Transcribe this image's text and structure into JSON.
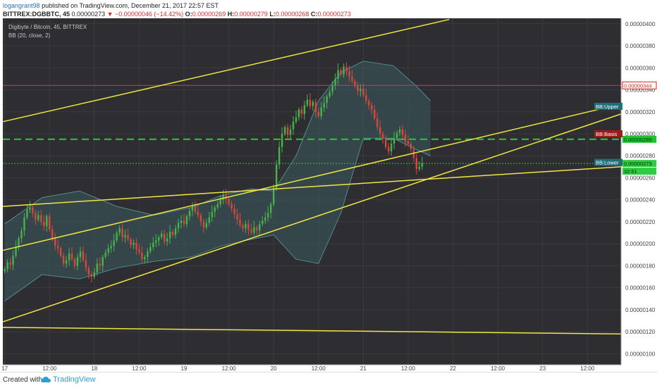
{
  "header": {
    "username": "logangrant98",
    "published_text": "published on TradingView.com, December 21, 2017 22:57 EST",
    "symbol": "BITTREX:DGBBTC, 45",
    "last_price": "0.00000273",
    "change": "−0.00000046 (−14.42%)",
    "open_label": "O:",
    "open": "0.00000269",
    "high_label": "H:",
    "high": "0.00000279",
    "low_label": "L:",
    "low": "0.00000268",
    "close_label": "C:",
    "close": "0.00000273"
  },
  "chart_overlay": {
    "instrument": "Digibyte / Bitcoin, 45, BITTREX",
    "indicator": "BB (20, close, 2)"
  },
  "footer": {
    "created_with": "Created with",
    "brand": "TradingView"
  },
  "chart_data": {
    "type": "candlestick",
    "ylim": [
      9e-07,
      4.05e-06
    ],
    "y_ticks": [
      "0.00000100",
      "0.00000120",
      "0.00000140",
      "0.00000160",
      "0.00000180",
      "0.00000200",
      "0.00000220",
      "0.00000240",
      "0.00000260",
      "0.00000280",
      "0.00000300",
      "0.00000320",
      "0.00000340",
      "0.00000360",
      "0.00000380",
      "0.00000400"
    ],
    "y_tick_values": [
      100,
      120,
      140,
      160,
      180,
      200,
      220,
      240,
      260,
      280,
      300,
      320,
      340,
      360,
      380,
      400
    ],
    "x_ticks": [
      {
        "label": "17",
        "t": 0
      },
      {
        "label": "12:00",
        "t": 12
      },
      {
        "label": "18",
        "t": 24
      },
      {
        "label": "12:00",
        "t": 36
      },
      {
        "label": "19",
        "t": 48
      },
      {
        "label": "12:00",
        "t": 60
      },
      {
        "label": "20",
        "t": 72
      },
      {
        "label": "12:00",
        "t": 84
      },
      {
        "label": "21",
        "t": 96
      },
      {
        "label": "12:00",
        "t": 108
      },
      {
        "label": "22",
        "t": 120
      },
      {
        "label": "12:00",
        "t": 132
      },
      {
        "label": "23",
        "t": 144
      },
      {
        "label": "12:00",
        "t": 156
      }
    ],
    "x_range_hours": [
      -0.5,
      165
    ],
    "unit_note": "prices in units of 1e-8 BTC",
    "candles_hours_start": 0,
    "candle_step_hours": 0.75,
    "closes": [
      177,
      183,
      181,
      189,
      197,
      205,
      212,
      224,
      231,
      233,
      228,
      222,
      226,
      220,
      216,
      225,
      213,
      205,
      198,
      196,
      189,
      182,
      185,
      191,
      186,
      180,
      188,
      193,
      185,
      178,
      172,
      170,
      174,
      182,
      180,
      188,
      192,
      196,
      198,
      203,
      210,
      214,
      206,
      208,
      204,
      199,
      201,
      195,
      192,
      186,
      188,
      193,
      197,
      201,
      203,
      206,
      209,
      202,
      205,
      211,
      208,
      214,
      219,
      221,
      218,
      225,
      230,
      234,
      229,
      226,
      220,
      215,
      219,
      224,
      229,
      233,
      236,
      240,
      244,
      241,
      236,
      232,
      227,
      222,
      217,
      214,
      218,
      213,
      210,
      215,
      212,
      218,
      221,
      224,
      228,
      236,
      251,
      272,
      288,
      300,
      306,
      299,
      304,
      311,
      315,
      322,
      318,
      326,
      331,
      325,
      329,
      320,
      316,
      324,
      328,
      334,
      338,
      344,
      350,
      358,
      354,
      361,
      357,
      352,
      348,
      344,
      339,
      341,
      335,
      330,
      326,
      322,
      314,
      306,
      300,
      296,
      288,
      284,
      291,
      296,
      301,
      304,
      299,
      293,
      291,
      286,
      278,
      268,
      270,
      273
    ],
    "upper_band": [
      {
        "t": 0,
        "v": 218
      },
      {
        "t": 10,
        "v": 242
      },
      {
        "t": 20,
        "v": 248
      },
      {
        "t": 30,
        "v": 234
      },
      {
        "t": 40,
        "v": 226
      },
      {
        "t": 50,
        "v": 233
      },
      {
        "t": 58,
        "v": 244
      },
      {
        "t": 66,
        "v": 250
      },
      {
        "t": 72,
        "v": 248
      },
      {
        "t": 78,
        "v": 280
      },
      {
        "t": 84,
        "v": 330
      },
      {
        "t": 90,
        "v": 356
      },
      {
        "t": 96,
        "v": 366
      },
      {
        "t": 104,
        "v": 362
      },
      {
        "t": 110,
        "v": 344
      },
      {
        "t": 114,
        "v": 330
      }
    ],
    "lower_band": [
      {
        "t": 0,
        "v": 148
      },
      {
        "t": 10,
        "v": 172
      },
      {
        "t": 20,
        "v": 168
      },
      {
        "t": 30,
        "v": 178
      },
      {
        "t": 40,
        "v": 184
      },
      {
        "t": 50,
        "v": 188
      },
      {
        "t": 58,
        "v": 198
      },
      {
        "t": 66,
        "v": 204
      },
      {
        "t": 72,
        "v": 208
      },
      {
        "t": 78,
        "v": 186
      },
      {
        "t": 84,
        "v": 182
      },
      {
        "t": 90,
        "v": 228
      },
      {
        "t": 96,
        "v": 296
      },
      {
        "t": 104,
        "v": 296
      },
      {
        "t": 110,
        "v": 286
      },
      {
        "t": 114,
        "v": 280
      }
    ],
    "basis": [
      {
        "t": 0,
        "v": 183
      },
      {
        "t": 10,
        "v": 207
      },
      {
        "t": 20,
        "v": 208
      },
      {
        "t": 30,
        "v": 206
      },
      {
        "t": 40,
        "v": 205
      },
      {
        "t": 50,
        "v": 210
      },
      {
        "t": 58,
        "v": 221
      },
      {
        "t": 66,
        "v": 227
      },
      {
        "t": 72,
        "v": 228
      },
      {
        "t": 78,
        "v": 233
      },
      {
        "t": 84,
        "v": 256
      },
      {
        "t": 90,
        "v": 292
      },
      {
        "t": 96,
        "v": 331
      },
      {
        "t": 104,
        "v": 329
      },
      {
        "t": 110,
        "v": 315
      },
      {
        "t": 114,
        "v": 305
      }
    ],
    "trend_lines": [
      {
        "t1": -0.5,
        "v1": 311,
        "t2": 119,
        "v2": 404
      },
      {
        "t1": -0.5,
        "v1": 194,
        "t2": 165,
        "v2": 327
      },
      {
        "t1": -0.5,
        "v1": 129,
        "t2": 165,
        "v2": 318
      },
      {
        "t1": -0.5,
        "v1": 234,
        "t2": 165,
        "v2": 270
      },
      {
        "t1": -0.5,
        "v1": 124,
        "t2": 165,
        "v2": 118
      }
    ],
    "horizontal_lines": [
      {
        "v": 344,
        "color": "#d83a3a",
        "style": "solid"
      },
      {
        "v": 295,
        "color": "#27c93f",
        "style": "dashed"
      },
      {
        "v": 273,
        "color": "#3fbf3f",
        "style": "dotted"
      }
    ],
    "right_labels": [
      {
        "text": "BB:Upper",
        "v": 325,
        "bg": "#1f6f78",
        "color": "#ffffff",
        "side": "left"
      },
      {
        "text": "0.00000344",
        "v": 344,
        "bg": "#ffffff",
        "color": "#d02020",
        "side": "right",
        "border": "#d02020"
      },
      {
        "text": "BB:Basis",
        "v": 300,
        "bg": "#9c1c1c",
        "color": "#ffffff",
        "side": "left"
      },
      {
        "text": "0.00000295",
        "v": 295,
        "bg": "#1cc52e",
        "color": "#0a2d0a",
        "side": "right"
      },
      {
        "text": "BB:Lower",
        "v": 274,
        "bg": "#1f6f78",
        "color": "#ffffff",
        "side": "left"
      },
      {
        "text": "0.00000273",
        "v": 273,
        "bg": "#2ecc40",
        "color": "#0a2d0a",
        "side": "right"
      },
      {
        "text": "32:51",
        "v": 266,
        "bg": "#2ecc40",
        "color": "#0a2d0a",
        "side": "right"
      }
    ],
    "colors": {
      "up": "#47b34a",
      "down": "#d9473e",
      "background": "#2e2e32",
      "grid": "#3a3a3f",
      "band": "#3b5b5e",
      "trend": "#f0e640",
      "axis_bg": "#ffffff"
    }
  }
}
